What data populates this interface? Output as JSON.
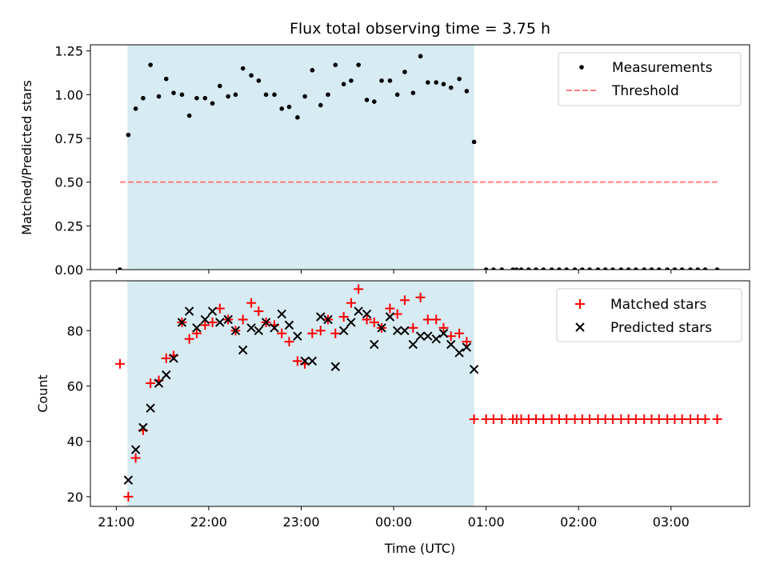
{
  "chart_data": {
    "title": "Flux total observing time = 3.75 h",
    "xlabel": "Time (UTC)",
    "x_tick_labels": [
      "21:00",
      "22:00",
      "23:00",
      "00:00",
      "01:00",
      "02:00",
      "03:00"
    ],
    "x_ticks_hours": [
      21,
      22,
      23,
      24,
      25,
      26,
      27
    ],
    "xlim_hours": [
      20.72,
      27.85
    ],
    "shaded_span_hours": [
      21.12,
      24.87
    ],
    "colors": {
      "shade": "#add8e6",
      "measurements": "#000000",
      "threshold": "#ff7f7f",
      "matched": "#ff0000",
      "predicted": "#000000"
    },
    "panels": [
      {
        "type": "scatter",
        "ylabel": "Matched/Predicted stars",
        "ylim": [
          0,
          1.285
        ],
        "y_ticks": [
          0,
          0.25,
          0.5,
          0.75,
          1.0,
          1.25
        ],
        "y_tick_labels": [
          "0.00",
          "0.25",
          "0.50",
          "0.75",
          "1.00",
          "1.25"
        ],
        "legend_position": "top-right",
        "threshold": {
          "name": "Threshold",
          "value": 0.5,
          "x_range_hours": [
            21.04,
            27.5
          ]
        },
        "series": [
          {
            "name": "Measurements",
            "marker": "dot",
            "x_hours": [
              21.04,
              21.13,
              21.21,
              21.29,
              21.37,
              21.46,
              21.54,
              21.62,
              21.71,
              21.79,
              21.87,
              21.96,
              22.04,
              22.12,
              22.21,
              22.29,
              22.37,
              22.46,
              22.54,
              22.62,
              22.71,
              22.79,
              22.87,
              22.96,
              23.04,
              23.12,
              23.21,
              23.29,
              23.37,
              23.46,
              23.54,
              23.62,
              23.71,
              23.79,
              23.87,
              23.96,
              24.04,
              24.12,
              24.21,
              24.29,
              24.37,
              24.46,
              24.54,
              24.62,
              24.71,
              24.79,
              24.87,
              25.0,
              25.08,
              25.17,
              25.29,
              25.33,
              25.38,
              25.46,
              25.54,
              25.62,
              25.71,
              25.79,
              25.87,
              25.96,
              26.04,
              26.12,
              26.21,
              26.29,
              26.37,
              26.46,
              26.54,
              26.62,
              26.71,
              26.79,
              26.87,
              26.96,
              27.04,
              27.12,
              27.21,
              27.29,
              27.37,
              27.5
            ],
            "y": [
              0.0,
              0.77,
              0.92,
              0.98,
              1.17,
              0.99,
              1.09,
              1.01,
              1.0,
              0.88,
              0.98,
              0.98,
              0.95,
              1.05,
              0.99,
              1.0,
              1.15,
              1.11,
              1.08,
              1.0,
              1.0,
              0.92,
              0.93,
              0.87,
              0.99,
              1.14,
              0.94,
              1.0,
              1.17,
              1.06,
              1.08,
              1.17,
              0.97,
              0.96,
              1.08,
              1.08,
              1.0,
              1.13,
              1.01,
              1.22,
              1.07,
              1.07,
              1.06,
              1.04,
              1.09,
              1.02,
              0.73,
              0.0,
              0.0,
              0.0,
              0.0,
              0.0,
              0.0,
              0.0,
              0.0,
              0.0,
              0.0,
              0.0,
              0.0,
              0.0,
              0.0,
              0.0,
              0.0,
              0.0,
              0.0,
              0.0,
              0.0,
              0.0,
              0.0,
              0.0,
              0.0,
              0.0,
              0.0,
              0.0,
              0.0,
              0.0,
              0.0,
              0.0
            ]
          }
        ]
      },
      {
        "type": "scatter",
        "ylabel": "Count",
        "ylim": [
          16.5,
          98.0
        ],
        "y_ticks": [
          20,
          40,
          60,
          80
        ],
        "y_tick_labels": [
          "20",
          "40",
          "60",
          "80"
        ],
        "legend_position": "top-right",
        "series": [
          {
            "name": "Matched stars",
            "marker": "plus",
            "x_hours": [
              21.04,
              21.13,
              21.21,
              21.29,
              21.37,
              21.46,
              21.54,
              21.62,
              21.71,
              21.79,
              21.87,
              21.96,
              22.04,
              22.12,
              22.21,
              22.29,
              22.37,
              22.46,
              22.54,
              22.62,
              22.71,
              22.79,
              22.87,
              22.96,
              23.04,
              23.12,
              23.21,
              23.29,
              23.37,
              23.46,
              23.54,
              23.62,
              23.71,
              23.79,
              23.87,
              23.96,
              24.04,
              24.12,
              24.21,
              24.29,
              24.37,
              24.46,
              24.54,
              24.62,
              24.71,
              24.79,
              24.87,
              25.0,
              25.08,
              25.17,
              25.29,
              25.33,
              25.38,
              25.46,
              25.54,
              25.62,
              25.71,
              25.79,
              25.87,
              25.96,
              26.04,
              26.12,
              26.21,
              26.29,
              26.37,
              26.46,
              26.54,
              26.62,
              26.71,
              26.79,
              26.87,
              26.96,
              27.04,
              27.12,
              27.21,
              27.29,
              27.37,
              27.5
            ],
            "y": [
              68,
              20,
              34,
              44,
              61,
              62,
              70,
              71,
              83,
              77,
              79,
              82,
              83,
              88,
              84,
              80,
              84,
              90,
              87,
              83,
              82,
              79,
              76,
              69,
              68,
              79,
              80,
              84,
              79,
              85,
              90,
              95,
              84,
              83,
              81,
              88,
              86,
              91,
              81,
              92,
              84,
              84,
              81,
              78,
              79,
              76,
              48,
              48,
              48,
              48,
              48,
              48,
              48,
              48,
              48,
              48,
              48,
              48,
              48,
              48,
              48,
              48,
              48,
              48,
              48,
              48,
              48,
              48,
              48,
              48,
              48,
              48,
              48,
              48,
              48,
              48,
              48,
              48
            ]
          },
          {
            "name": "Predicted stars",
            "marker": "x",
            "x_hours": [
              21.13,
              21.21,
              21.29,
              21.37,
              21.46,
              21.54,
              21.62,
              21.71,
              21.79,
              21.87,
              21.96,
              22.04,
              22.12,
              22.21,
              22.29,
              22.37,
              22.46,
              22.54,
              22.62,
              22.71,
              22.79,
              22.87,
              22.96,
              23.04,
              23.12,
              23.21,
              23.29,
              23.37,
              23.46,
              23.54,
              23.62,
              23.71,
              23.79,
              23.87,
              23.96,
              24.04,
              24.12,
              24.21,
              24.29,
              24.37,
              24.46,
              24.54,
              24.62,
              24.71,
              24.79,
              24.87
            ],
            "y": [
              26,
              37,
              45,
              52,
              61,
              64,
              70,
              83,
              87,
              81,
              84,
              87,
              83,
              84,
              80,
              73,
              81,
              80,
              83,
              81,
              86,
              82,
              78,
              69,
              69,
              85,
              84,
              67,
              80,
              83,
              87,
              86,
              75,
              81,
              85,
              80,
              80,
              75,
              78,
              78,
              77,
              79,
              75,
              72,
              74,
              66
            ]
          }
        ]
      }
    ]
  }
}
